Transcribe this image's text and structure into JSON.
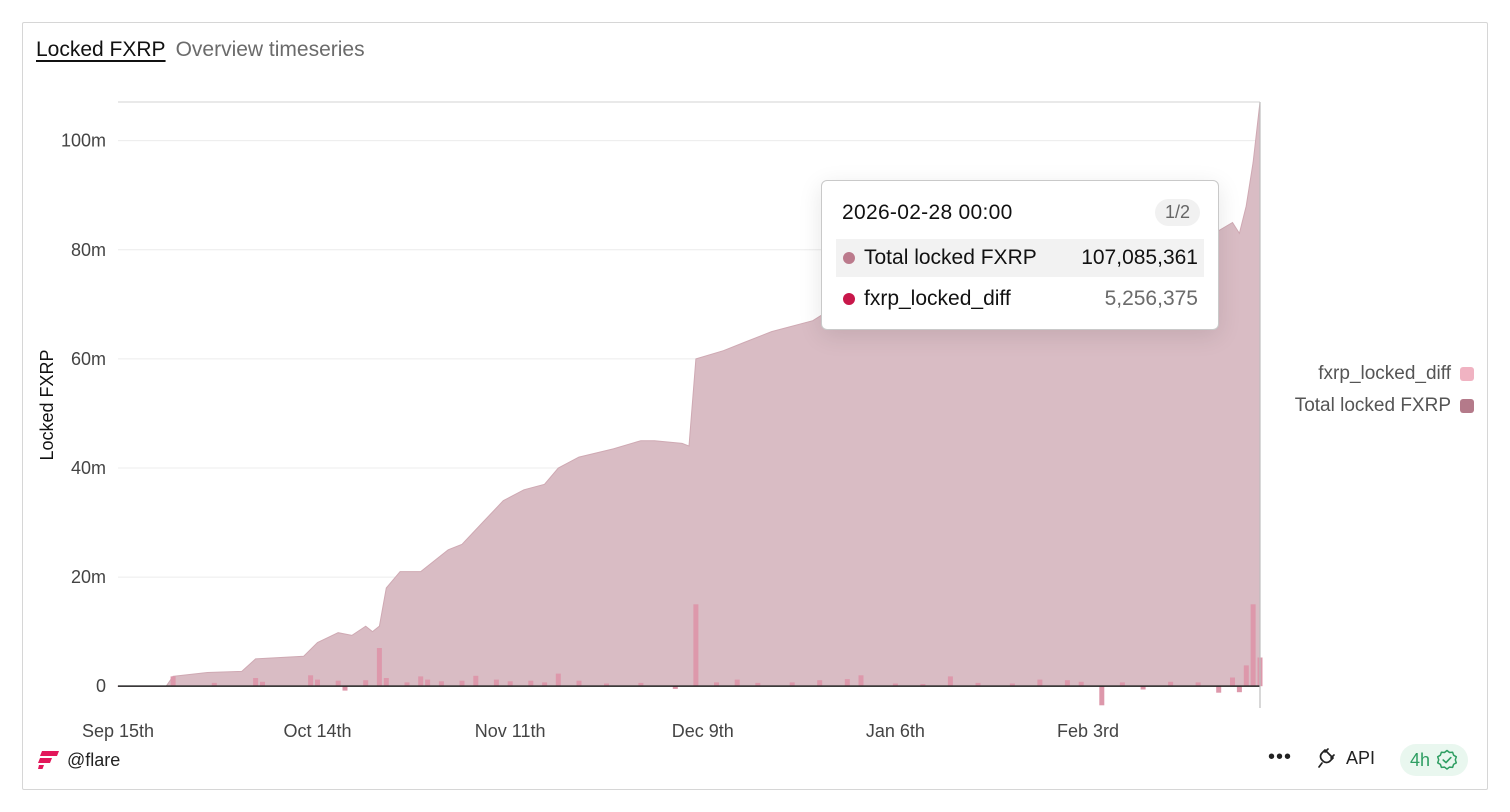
{
  "header": {
    "title": "Locked FXRP",
    "subtitle": "Overview timeseries"
  },
  "colors": {
    "area": "#d9bcc4",
    "area_edge": "#cfa9b3",
    "bars": "#dd98ab",
    "total_dot": "#bb7a8c",
    "diff_dot": "#c8174a",
    "legend_total": "#b47a8a",
    "legend_diff": "#f0b3c2"
  },
  "chart_data": {
    "type": "area",
    "ylabel": "Locked FXRP",
    "ylim": [
      -4000000,
      107085361
    ],
    "y_ticks": [
      0,
      20000000,
      40000000,
      60000000,
      80000000,
      100000000
    ],
    "y_tick_labels": [
      "0",
      "20m",
      "40m",
      "60m",
      "80m",
      "100m"
    ],
    "x_range": [
      "2025-09-15",
      "2026-02-28"
    ],
    "x_tick_dates": [
      "2025-09-15",
      "2025-10-14",
      "2025-11-11",
      "2025-12-09",
      "2026-01-06",
      "2026-02-03"
    ],
    "x_tick_labels": [
      "Sep 15th",
      "Oct 14th",
      "Nov 11th",
      "Dec 9th",
      "Jan 6th",
      "Feb 3rd"
    ],
    "grid": true,
    "legend_position": "right",
    "series": [
      {
        "name": "Total locked FXRP",
        "type": "area",
        "points": [
          [
            "2025-09-15",
            0
          ],
          [
            "2025-09-22",
            0
          ],
          [
            "2025-09-23",
            1800000
          ],
          [
            "2025-09-28",
            2500000
          ],
          [
            "2025-10-03",
            2700000
          ],
          [
            "2025-10-05",
            5000000
          ],
          [
            "2025-10-12",
            5500000
          ],
          [
            "2025-10-14",
            8000000
          ],
          [
            "2025-10-17",
            9800000
          ],
          [
            "2025-10-19",
            9300000
          ],
          [
            "2025-10-21",
            11000000
          ],
          [
            "2025-10-22",
            10000000
          ],
          [
            "2025-10-23",
            11000000
          ],
          [
            "2025-10-24",
            18000000
          ],
          [
            "2025-10-26",
            21000000
          ],
          [
            "2025-10-29",
            21000000
          ],
          [
            "2025-11-02",
            25000000
          ],
          [
            "2025-11-04",
            26000000
          ],
          [
            "2025-11-07",
            30000000
          ],
          [
            "2025-11-10",
            34000000
          ],
          [
            "2025-11-13",
            36000000
          ],
          [
            "2025-11-16",
            37000000
          ],
          [
            "2025-11-18",
            40000000
          ],
          [
            "2025-11-21",
            42000000
          ],
          [
            "2025-11-26",
            43500000
          ],
          [
            "2025-11-30",
            45000000
          ],
          [
            "2025-12-02",
            45000000
          ],
          [
            "2025-12-06",
            44500000
          ],
          [
            "2025-12-07",
            44000000
          ],
          [
            "2025-12-08",
            60000000
          ],
          [
            "2025-12-12",
            61500000
          ],
          [
            "2025-12-15",
            63000000
          ],
          [
            "2025-12-19",
            65000000
          ],
          [
            "2025-12-25",
            67000000
          ],
          [
            "2025-12-30",
            71000000
          ],
          [
            "2026-01-03",
            73000000
          ],
          [
            "2026-01-08",
            74000000
          ],
          [
            "2026-01-15",
            75000000
          ],
          [
            "2026-01-25",
            77000000
          ],
          [
            "2026-02-03",
            78000000
          ],
          [
            "2026-02-10",
            79000000
          ],
          [
            "2026-02-16",
            80000000
          ],
          [
            "2026-02-20",
            82000000
          ],
          [
            "2026-02-24",
            85000000
          ],
          [
            "2026-02-25",
            83000000
          ],
          [
            "2026-02-26",
            88000000
          ],
          [
            "2026-02-27",
            96000000
          ],
          [
            "2026-02-28",
            107085361
          ]
        ]
      },
      {
        "name": "fxrp_locked_diff",
        "type": "bar",
        "points": [
          [
            "2025-09-23",
            1800000
          ],
          [
            "2025-09-29",
            600000
          ],
          [
            "2025-10-05",
            1500000
          ],
          [
            "2025-10-06",
            800000
          ],
          [
            "2025-10-13",
            2000000
          ],
          [
            "2025-10-14",
            1200000
          ],
          [
            "2025-10-17",
            1000000
          ],
          [
            "2025-10-18",
            -800000
          ],
          [
            "2025-10-21",
            1100000
          ],
          [
            "2025-10-23",
            7000000
          ],
          [
            "2025-10-24",
            1500000
          ],
          [
            "2025-10-27",
            700000
          ],
          [
            "2025-10-29",
            1800000
          ],
          [
            "2025-10-30",
            1200000
          ],
          [
            "2025-11-01",
            900000
          ],
          [
            "2025-11-04",
            1000000
          ],
          [
            "2025-11-06",
            1900000
          ],
          [
            "2025-11-09",
            1200000
          ],
          [
            "2025-11-11",
            900000
          ],
          [
            "2025-11-14",
            1000000
          ],
          [
            "2025-11-16",
            700000
          ],
          [
            "2025-11-18",
            2300000
          ],
          [
            "2025-11-21",
            1000000
          ],
          [
            "2025-11-25",
            500000
          ],
          [
            "2025-11-30",
            600000
          ],
          [
            "2025-12-05",
            -500000
          ],
          [
            "2025-12-08",
            15000000
          ],
          [
            "2025-12-11",
            700000
          ],
          [
            "2025-12-14",
            1200000
          ],
          [
            "2025-12-17",
            600000
          ],
          [
            "2025-12-22",
            700000
          ],
          [
            "2025-12-26",
            1100000
          ],
          [
            "2025-12-30",
            1300000
          ],
          [
            "2026-01-01",
            2000000
          ],
          [
            "2026-01-06",
            500000
          ],
          [
            "2026-01-10",
            400000
          ],
          [
            "2026-01-14",
            1800000
          ],
          [
            "2026-01-18",
            600000
          ],
          [
            "2026-01-23",
            500000
          ],
          [
            "2026-01-27",
            1200000
          ],
          [
            "2026-01-31",
            1100000
          ],
          [
            "2026-02-02",
            800000
          ],
          [
            "2026-02-05",
            -3500000
          ],
          [
            "2026-02-08",
            700000
          ],
          [
            "2026-02-11",
            -600000
          ],
          [
            "2026-02-15",
            800000
          ],
          [
            "2026-02-19",
            700000
          ],
          [
            "2026-02-22",
            -1200000
          ],
          [
            "2026-02-24",
            1600000
          ],
          [
            "2026-02-25",
            -1100000
          ],
          [
            "2026-02-26",
            3800000
          ],
          [
            "2026-02-27",
            15000000
          ],
          [
            "2026-02-28",
            5256375
          ]
        ]
      }
    ]
  },
  "tooltip": {
    "date": "2026-02-28 00:00",
    "page": "1/2",
    "rows": [
      {
        "name": "Total locked FXRP",
        "value": "107,085,361"
      },
      {
        "name": "fxrp_locked_diff",
        "value": "5,256,375"
      }
    ]
  },
  "legend": [
    {
      "name": "fxrp_locked_diff"
    },
    {
      "name": "Total locked FXRP"
    }
  ],
  "footer": {
    "user": "@flare",
    "api_label": "API",
    "badge_label": "4h",
    "logo_icon": "flare-logo-icon",
    "more_icon": "more-icon",
    "api_icon": "api-plug-icon",
    "badge_icon": "check-badge-icon"
  }
}
